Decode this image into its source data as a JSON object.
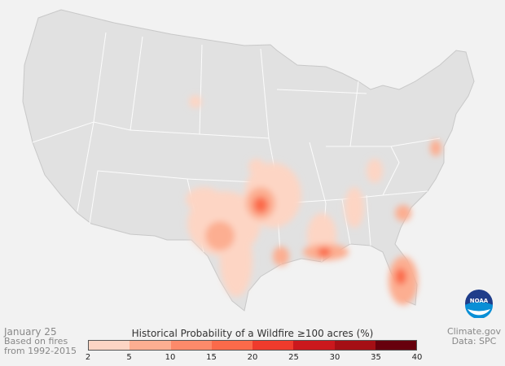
{
  "info": {
    "date": "January 25",
    "basis_line1": "Based on fires",
    "basis_line2": "from 1992-2015"
  },
  "credit": {
    "site": "Climate.gov",
    "source": "Data: SPC"
  },
  "legend": {
    "title": "Historical Probability of a Wildfire ≥100 acres (%)",
    "ticks": [
      "2",
      "5",
      "10",
      "15",
      "20",
      "25",
      "30",
      "35",
      "40"
    ],
    "colors": [
      "#fdd5c4",
      "#fcae91",
      "#fc8a6a",
      "#fb6a4a",
      "#ef3b2c",
      "#cb181d",
      "#a50f15",
      "#67000d"
    ]
  },
  "logo": {
    "text": "NOAA"
  },
  "colors": {
    "land": "#e1e1e1",
    "background": "#f2f2f2",
    "border": "#ffffff"
  }
}
